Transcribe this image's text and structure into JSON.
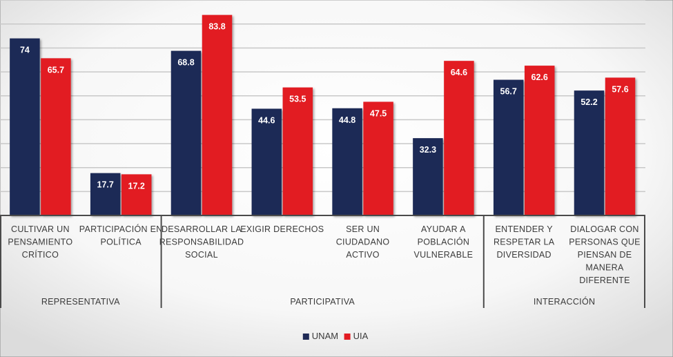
{
  "chart_data": {
    "type": "bar",
    "title": "",
    "xlabel": "",
    "ylabel": "",
    "ylim": [
      0,
      90
    ],
    "grid": true,
    "legend_position": "bottom",
    "categories": [
      [
        "CULTIVAR UN",
        "PENSAMIENTO",
        "CRÍTICO"
      ],
      [
        "PARTICIPACIÓN EN",
        "POLÍTICA"
      ],
      [
        "DESARROLLAR LA",
        "RESPONSABILIDAD",
        "SOCIAL"
      ],
      [
        "EXIGIR DERECHOS"
      ],
      [
        "SER UN",
        "CIUDADANO",
        "ACTIVO"
      ],
      [
        "AYUDAR A",
        "POBLACIÓN",
        "VULNERABLE"
      ],
      [
        "ENTENDER Y",
        "RESPETAR LA",
        "DIVERSIDAD"
      ],
      [
        "DIALOGAR CON",
        "PERSONAS QUE",
        "PIENSAN DE",
        "MANERA",
        "DIFERENTE"
      ]
    ],
    "groups": [
      {
        "label": "REPRESENTATIVA",
        "start": 0,
        "end": 1
      },
      {
        "label": "PARTICIPATIVA",
        "start": 2,
        "end": 5
      },
      {
        "label": "INTERACCIÓN",
        "start": 6,
        "end": 7
      }
    ],
    "series": [
      {
        "name": "UNAM",
        "color": "#1f2a56",
        "values": [
          74,
          17.7,
          68.8,
          44.6,
          44.8,
          32.3,
          56.7,
          52.2
        ]
      },
      {
        "name": "UIA",
        "color": "#e21b22",
        "values": [
          65.7,
          17.2,
          83.8,
          53.5,
          47.5,
          64.6,
          62.6,
          57.6
        ]
      }
    ]
  }
}
